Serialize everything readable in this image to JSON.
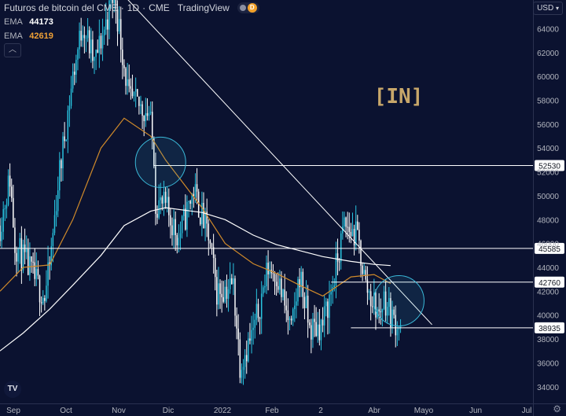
{
  "header": {
    "symbol": "Futuros de bitcoin del CME",
    "interval": "1D",
    "exchange": "CME",
    "source": "TradingView",
    "status_letter": "D"
  },
  "indicators": [
    {
      "label": "EMA",
      "value": "44173",
      "color": "#ffffff"
    },
    {
      "label": "EMA",
      "value": "42619",
      "color": "#f0a136"
    }
  ],
  "currency": "USD",
  "collapse_icon": "chevron-up-icon",
  "logo_text": "TV",
  "watermark_text": "[IN]",
  "colors": {
    "background": "#0b1230",
    "up_candle": "#29c4e0",
    "down_candle": "#ffffff",
    "ema_fast": "#ffffff",
    "ema_slow": "#d08a2a",
    "lines": "#ffffff",
    "circle": "#3ab8d8",
    "watermark": "#c8a76a"
  },
  "chart_data": {
    "type": "candlestick",
    "title": "Futuros de bitcoin del CME",
    "x_tick_labels": [
      "Sep",
      "Oct",
      "Nov",
      "Dic",
      "2022",
      "Feb",
      "2",
      "Abr",
      "Mayo",
      "Jun",
      "Jul"
    ],
    "y_ticks": [
      34000,
      36000,
      38000,
      40000,
      42000,
      44000,
      46000,
      48000,
      50000,
      52000,
      54000,
      56000,
      58000,
      60000,
      62000,
      64000
    ],
    "ylim": [
      32600,
      66400
    ],
    "x_range": [
      "2021-09-01",
      "2022-07-20"
    ],
    "grid": false,
    "price_levels": [
      {
        "label": "52530",
        "value": 52530,
        "from": "2021-12-03",
        "to": "2022-07-20"
      },
      {
        "label": "45585",
        "value": 45585,
        "from": "2021-09-01",
        "to": "2022-07-20"
      },
      {
        "label": "42760",
        "value": 42760,
        "from": "2022-03-20",
        "to": "2022-07-20"
      },
      {
        "label": "38935",
        "value": 38935,
        "from": "2022-04-01",
        "to": "2022-07-20"
      }
    ],
    "trendline": {
      "from": {
        "date": "2021-11-10",
        "value": 67500
      },
      "to": {
        "date": "2022-05-20",
        "value": 39200
      }
    },
    "circles": [
      {
        "date": "2021-12-07",
        "value": 52800
      },
      {
        "date": "2022-04-30",
        "value": 41200
      }
    ],
    "ema_fast_path": [
      [
        "2021-09-01",
        37000
      ],
      [
        "2021-09-15",
        38500
      ],
      [
        "2021-10-01",
        40500
      ],
      [
        "2021-10-15",
        42500
      ],
      [
        "2021-11-01",
        45000
      ],
      [
        "2021-11-15",
        47500
      ],
      [
        "2021-12-01",
        48700
      ],
      [
        "2021-12-10",
        49000
      ],
      [
        "2022-01-01",
        48600
      ],
      [
        "2022-01-15",
        48000
      ],
      [
        "2022-02-01",
        46700
      ],
      [
        "2022-02-15",
        45900
      ],
      [
        "2022-03-01",
        45400
      ],
      [
        "2022-03-15",
        44900
      ],
      [
        "2022-04-01",
        44500
      ],
      [
        "2022-04-15",
        44250
      ],
      [
        "2022-04-25",
        44150
      ]
    ],
    "ema_slow_path": [
      [
        "2021-09-01",
        42000
      ],
      [
        "2021-09-15",
        44000
      ],
      [
        "2021-10-01",
        44200
      ],
      [
        "2021-10-15",
        48000
      ],
      [
        "2021-11-01",
        54000
      ],
      [
        "2021-11-15",
        56500
      ],
      [
        "2021-12-01",
        55000
      ],
      [
        "2021-12-10",
        53000
      ],
      [
        "2022-01-01",
        49000
      ],
      [
        "2022-01-15",
        46000
      ],
      [
        "2022-02-01",
        44300
      ],
      [
        "2022-02-15",
        43500
      ],
      [
        "2022-03-01",
        42500
      ],
      [
        "2022-03-15",
        41600
      ],
      [
        "2022-04-01",
        43200
      ],
      [
        "2022-04-15",
        43400
      ],
      [
        "2022-04-25",
        42650
      ]
    ],
    "candle_anchors": [
      [
        "2021-09-01",
        47500
      ],
      [
        "2021-09-07",
        51500
      ],
      [
        "2021-09-10",
        46000
      ],
      [
        "2021-09-20",
        43500
      ],
      [
        "2021-09-28",
        41500
      ],
      [
        "2021-10-01",
        44000
      ],
      [
        "2021-10-06",
        51000
      ],
      [
        "2021-10-15",
        60000
      ],
      [
        "2021-10-21",
        64500
      ],
      [
        "2021-10-28",
        61000
      ],
      [
        "2021-11-09",
        67000
      ],
      [
        "2021-11-18",
        58000
      ],
      [
        "2021-11-24",
        57500
      ],
      [
        "2021-11-30",
        57000
      ],
      [
        "2021-12-03",
        53500
      ],
      [
        "2021-12-04",
        49500
      ],
      [
        "2021-12-10",
        49000
      ],
      [
        "2021-12-18",
        46500
      ],
      [
        "2021-12-27",
        50500
      ],
      [
        "2022-01-05",
        46500
      ],
      [
        "2022-01-10",
        42000
      ],
      [
        "2022-01-20",
        42500
      ],
      [
        "2022-01-24",
        36000
      ],
      [
        "2022-02-01",
        38500
      ],
      [
        "2022-02-10",
        44000
      ],
      [
        "2022-02-15",
        43500
      ],
      [
        "2022-02-24",
        38500
      ],
      [
        "2022-03-01",
        43500
      ],
      [
        "2022-03-07",
        38800
      ],
      [
        "2022-03-15",
        39200
      ],
      [
        "2022-03-21",
        42500
      ],
      [
        "2022-03-28",
        47500
      ],
      [
        "2022-04-05",
        46500
      ],
      [
        "2022-04-10",
        42500
      ],
      [
        "2022-04-18",
        40000
      ],
      [
        "2022-04-21",
        41500
      ],
      [
        "2022-04-27",
        39500
      ],
      [
        "2022-05-01",
        39200
      ]
    ]
  }
}
